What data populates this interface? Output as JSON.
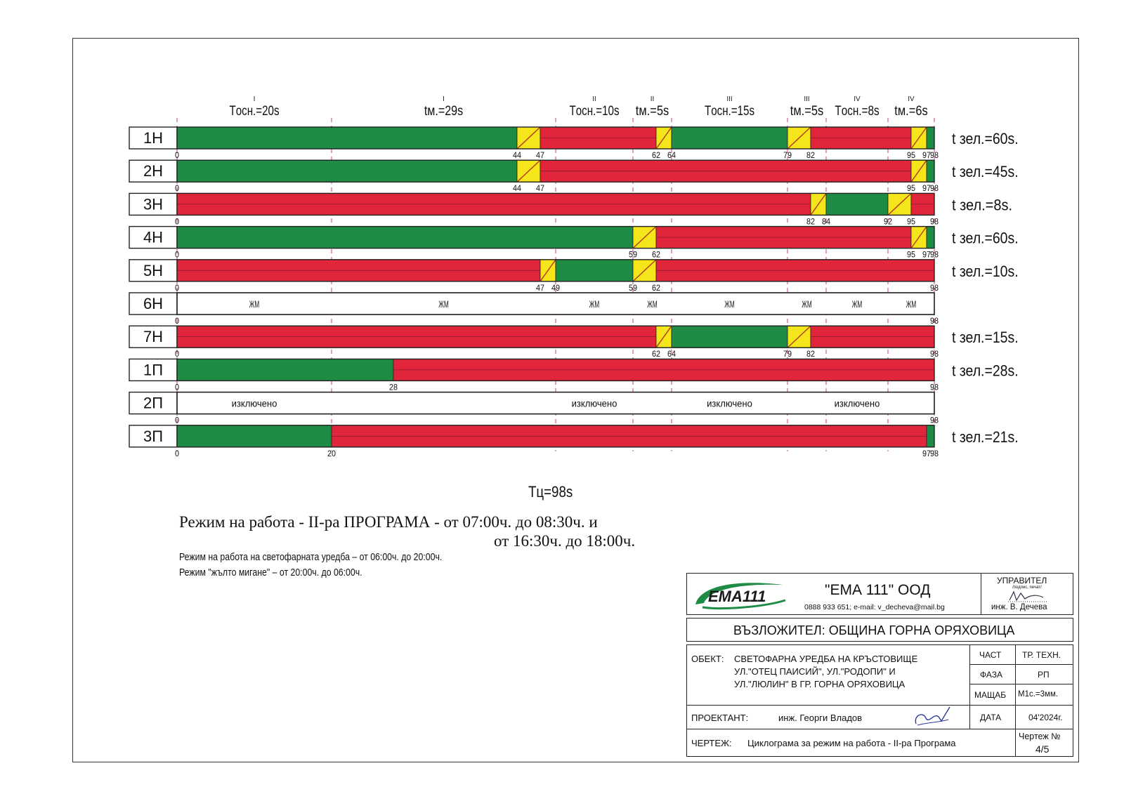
{
  "cycle_total": 98,
  "colors": {
    "green": "#1e8c44",
    "red": "#e1263c",
    "yellow": "#f5e61c",
    "guide": "#c2388a",
    "border": "#222222"
  },
  "phase_headers": [
    {
      "roman": "I",
      "label": "Tосн.=20s",
      "from": 0,
      "to": 20
    },
    {
      "roman": "I",
      "label": "tм.=29s",
      "from": 20,
      "to": 49
    },
    {
      "roman": "II",
      "label": "Tосн.=10s",
      "from": 49,
      "to": 59
    },
    {
      "roman": "II",
      "label": "tм.=5s",
      "from": 59,
      "to": 64
    },
    {
      "roman": "III",
      "label": "Tосн.=15s",
      "from": 64,
      "to": 79
    },
    {
      "roman": "III",
      "label": "tм.=5s",
      "from": 79,
      "to": 84
    },
    {
      "roman": "IV",
      "label": "Tосн.=8s",
      "from": 84,
      "to": 92
    },
    {
      "roman": "IV",
      "label": "tм.=6s",
      "from": 92,
      "to": 98
    }
  ],
  "guides": [
    0,
    20,
    49,
    59,
    64,
    79,
    84,
    92,
    98
  ],
  "rows": [
    {
      "name": "1Н",
      "green_time": "t зел.=60s.",
      "segments": [
        [
          "G",
          0,
          44
        ],
        [
          "Y",
          44,
          47
        ],
        [
          "R",
          47,
          62
        ],
        [
          "Y",
          62,
          64
        ],
        [
          "G",
          64,
          79
        ],
        [
          "Y",
          79,
          82
        ],
        [
          "R",
          82,
          95
        ],
        [
          "Y",
          95,
          97
        ],
        [
          "G",
          97,
          98
        ]
      ],
      "ticks": [
        [
          "0",
          0
        ],
        [
          "44",
          44
        ],
        [
          "47",
          47
        ],
        [
          "62",
          62
        ],
        [
          "64",
          64
        ],
        [
          "79",
          79
        ],
        [
          "82",
          82
        ],
        [
          "95",
          95
        ],
        [
          "97",
          97
        ],
        [
          "98",
          98
        ]
      ]
    },
    {
      "name": "2Н",
      "green_time": "t зел.=45s.",
      "segments": [
        [
          "G",
          0,
          44
        ],
        [
          "Y",
          44,
          47
        ],
        [
          "R",
          47,
          95
        ],
        [
          "Y",
          95,
          97
        ],
        [
          "G",
          97,
          98
        ]
      ],
      "ticks": [
        [
          "0",
          0
        ],
        [
          "44",
          44
        ],
        [
          "47",
          47
        ],
        [
          "95",
          95
        ],
        [
          "97",
          97
        ],
        [
          "98",
          98
        ]
      ]
    },
    {
      "name": "3Н",
      "green_time": "t зел.=8s.",
      "segments": [
        [
          "R",
          0,
          82
        ],
        [
          "Y",
          82,
          84
        ],
        [
          "G",
          84,
          92
        ],
        [
          "Y",
          92,
          95
        ],
        [
          "R",
          95,
          98
        ]
      ],
      "ticks": [
        [
          "0",
          0
        ],
        [
          "82",
          82
        ],
        [
          "84",
          84
        ],
        [
          "92",
          92
        ],
        [
          "95",
          95
        ],
        [
          "98",
          98
        ]
      ]
    },
    {
      "name": "4Н",
      "green_time": "t зел.=60s.",
      "segments": [
        [
          "G",
          0,
          59
        ],
        [
          "Y",
          59,
          62
        ],
        [
          "R",
          62,
          95
        ],
        [
          "Y",
          95,
          97
        ],
        [
          "G",
          97,
          98
        ]
      ],
      "ticks": [
        [
          "0",
          0
        ],
        [
          "59",
          59
        ],
        [
          "62",
          62
        ],
        [
          "95",
          95
        ],
        [
          "97",
          97
        ],
        [
          "98",
          98
        ]
      ]
    },
    {
      "name": "5Н",
      "green_time": "t зел.=10s.",
      "segments": [
        [
          "R",
          0,
          47
        ],
        [
          "Y",
          47,
          49
        ],
        [
          "G",
          49,
          59
        ],
        [
          "Y",
          59,
          62
        ],
        [
          "R",
          62,
          98
        ]
      ],
      "ticks": [
        [
          "0",
          0
        ],
        [
          "47",
          47
        ],
        [
          "49",
          49
        ],
        [
          "59",
          59
        ],
        [
          "62",
          62
        ],
        [
          "98",
          98
        ]
      ]
    },
    {
      "name": "6Н",
      "green_time": "",
      "segments": [
        [
          "W",
          0,
          98
        ]
      ],
      "ticks": [
        [
          "0",
          0
        ],
        [
          "98",
          98
        ]
      ],
      "notes": [
        [
          "ЖМ",
          10
        ],
        [
          "ЖМ",
          34.5
        ],
        [
          "ЖМ",
          54
        ],
        [
          "ЖМ",
          61.5
        ],
        [
          "ЖМ",
          71.5
        ],
        [
          "ЖМ",
          81.5
        ],
        [
          "ЖМ",
          88
        ],
        [
          "ЖМ",
          95
        ]
      ]
    },
    {
      "name": "7Н",
      "green_time": "t зел.=15s.",
      "segments": [
        [
          "R",
          0,
          62
        ],
        [
          "Y",
          62,
          64
        ],
        [
          "G",
          64,
          79
        ],
        [
          "Y",
          79,
          82
        ],
        [
          "R",
          82,
          98
        ]
      ],
      "ticks": [
        [
          "0",
          0
        ],
        [
          "62",
          62
        ],
        [
          "64",
          64
        ],
        [
          "79",
          79
        ],
        [
          "82",
          82
        ],
        [
          "98",
          98
        ]
      ]
    },
    {
      "name": "1П",
      "green_time": "t зел.=28s.",
      "segments": [
        [
          "G",
          0,
          28
        ],
        [
          "R",
          28,
          98
        ]
      ],
      "ticks": [
        [
          "0",
          0
        ],
        [
          "28",
          28
        ],
        [
          "98",
          98
        ]
      ]
    },
    {
      "name": "2П",
      "green_time": "",
      "segments": [
        [
          "W",
          0,
          98
        ]
      ],
      "ticks": [
        [
          "0",
          0
        ],
        [
          "98",
          98
        ]
      ],
      "notes": [
        [
          "изключено",
          10
        ],
        [
          "изключено",
          54
        ],
        [
          "изключено",
          71.5
        ],
        [
          "изключено",
          88
        ]
      ]
    },
    {
      "name": "3П",
      "green_time": "t зел.=21s.",
      "segments": [
        [
          "G",
          0,
          20
        ],
        [
          "R",
          20,
          97
        ],
        [
          "G",
          97,
          98
        ]
      ],
      "ticks": [
        [
          "0",
          0
        ],
        [
          "20",
          20
        ],
        [
          "97",
          97
        ],
        [
          "98",
          98
        ]
      ]
    }
  ],
  "cycle_label": "Tц=98s",
  "mode_title_line1": "Режим на работа - II-ра ПРОГРАМА - от 07:00ч. до 08:30ч. и",
  "mode_title_line2": "от 16:30ч. до 18:00ч.",
  "mode_note1": "Режим на работа на светофарната уредба – от 06:00ч. до 20:00ч.",
  "mode_note2": "Режим \"жълто мигане\" – от 20:00ч. до 06:00ч.",
  "title_block": {
    "logo_text": "ЕМА111",
    "company": "\"ЕМА 111\" ООД",
    "contact": "0888 933 651; e-mail: v_decheva@mail.bg",
    "manager_label": "УПРАВИТЕЛ",
    "manager_sub": "/подпис, печат/",
    "manager_name": "инж. В. Дечева",
    "client": "ВЪЗЛОЖИТЕЛ:   ОБЩИНА ГОРНА ОРЯХОВИЦА",
    "object_label": "ОБЕКТ:",
    "object_line1": "СВЕТОФАРНА УРЕДБА НА КРЪСТОВИЩЕ",
    "object_line2": "УЛ.\"ОТЕЦ ПАИСИЙ\", УЛ.\"РОДОПИ\" И",
    "object_line3": "УЛ.\"ЛЮЛИН\" В ГР. ГОРНА ОРЯХОВИЦА",
    "part_label": "ЧАСТ",
    "part_value": "ТР. ТЕХН.",
    "phase_label": "ФАЗА",
    "phase_value": "РП",
    "scale_label": "МАЩАБ",
    "scale_value": "М1с.=3мм.",
    "designer_label": "ПРОЕКТАНТ:",
    "designer_name": "инж. Георги Владов",
    "date_label": "ДАТА",
    "date_value": "04'2024г.",
    "drawing_label": "ЧЕРТЕЖ:",
    "drawing_value": "Циклограма за режим на работа - II-ра Програма",
    "sheet_label": "Чертеж №",
    "sheet_value": "4/5"
  }
}
